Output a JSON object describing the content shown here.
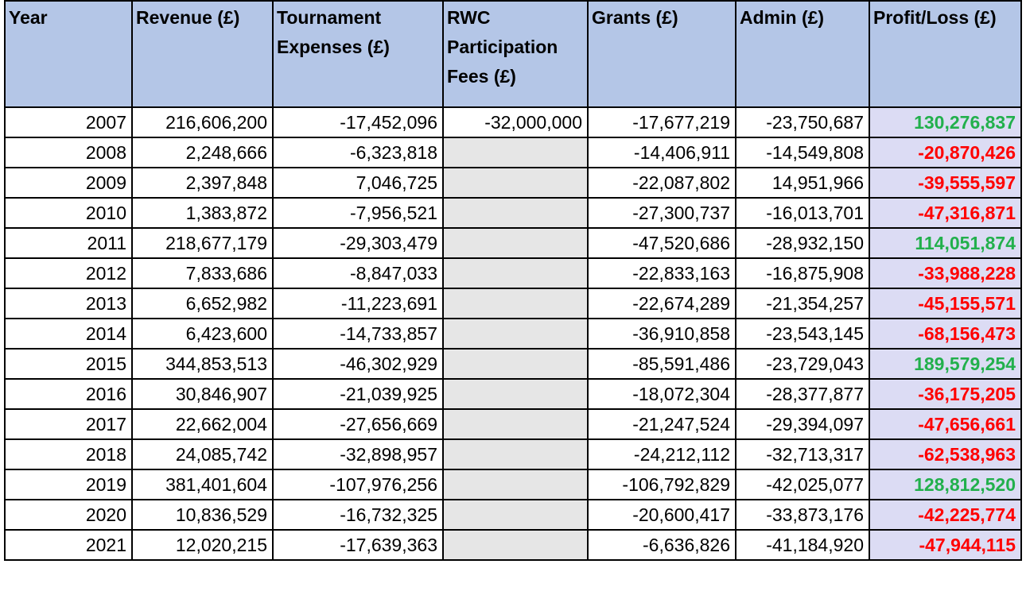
{
  "table": {
    "header": [
      "Year",
      "Revenue (£)",
      "Tournament Expenses (£)",
      "RWC Participation Fees (£)",
      "Grants (£)",
      "Admin (£)",
      "Profit/Loss (£)"
    ],
    "rows": [
      [
        "2007",
        "216,606,200",
        "-17,452,096",
        "-32,000,000",
        "-17,677,219",
        "-23,750,687",
        "130,276,837"
      ],
      [
        "2008",
        "2,248,666",
        "-6,323,818",
        null,
        "-14,406,911",
        "-14,549,808",
        "-20,870,426"
      ],
      [
        "2009",
        "2,397,848",
        "7,046,725",
        null,
        "-22,087,802",
        "14,951,966",
        "-39,555,597"
      ],
      [
        "2010",
        "1,383,872",
        "-7,956,521",
        null,
        "-27,300,737",
        "-16,013,701",
        "-47,316,871"
      ],
      [
        "2011",
        "218,677,179",
        "-29,303,479",
        null,
        "-47,520,686",
        "-28,932,150",
        "114,051,874"
      ],
      [
        "2012",
        "7,833,686",
        "-8,847,033",
        null,
        "-22,833,163",
        "-16,875,908",
        "-33,988,228"
      ],
      [
        "2013",
        "6,652,982",
        "-11,223,691",
        null,
        "-22,674,289",
        "-21,354,257",
        "-45,155,571"
      ],
      [
        "2014",
        "6,423,600",
        "-14,733,857",
        null,
        "-36,910,858",
        "-23,543,145",
        "-68,156,473"
      ],
      [
        "2015",
        "344,853,513",
        "-46,302,929",
        null,
        "-85,591,486",
        "-23,729,043",
        "189,579,254"
      ],
      [
        "2016",
        "30,846,907",
        "-21,039,925",
        null,
        "-18,072,304",
        "-28,377,877",
        "-36,175,205"
      ],
      [
        "2017",
        "22,662,004",
        "-27,656,669",
        null,
        "-21,247,524",
        "-29,394,097",
        "-47,656,661"
      ],
      [
        "2018",
        "24,085,742",
        "-32,898,957",
        null,
        "-24,212,112",
        "-32,713,317",
        "-62,538,963"
      ],
      [
        "2019",
        "381,401,604",
        "-107,976,256",
        null,
        "-106,792,829",
        "-42,025,077",
        "128,812,520"
      ],
      [
        "2020",
        "10,836,529",
        "-16,732,325",
        null,
        "-20,600,417",
        "-33,873,176",
        "-42,225,774"
      ],
      [
        "2021",
        "12,020,215",
        "-17,639,363",
        null,
        "-6,636,826",
        "-41,184,920",
        "-47,944,115"
      ]
    ]
  }
}
